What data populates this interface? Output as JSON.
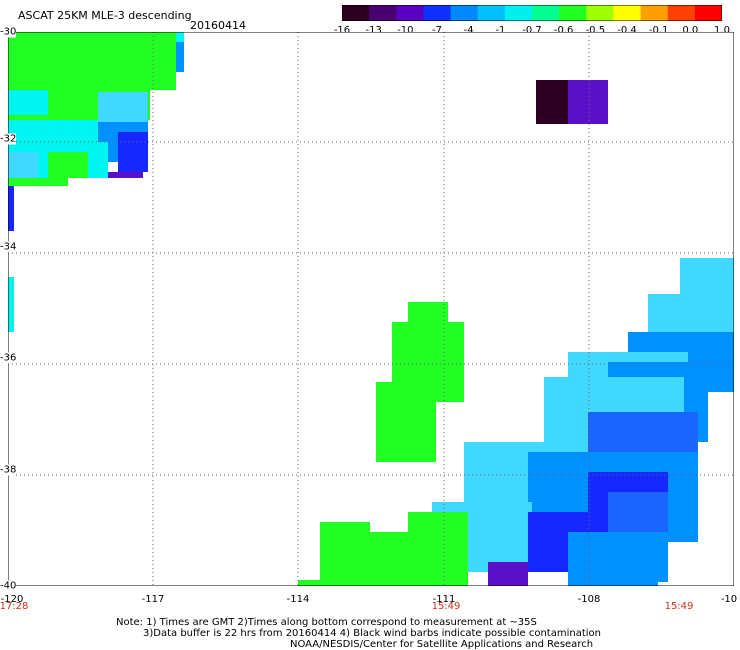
{
  "header": {
    "title": "ASCAT 25KM MLE-3 descending",
    "date": "20160414"
  },
  "colorbar": {
    "labels": [
      "-16",
      "-13",
      "-10",
      "-7",
      "-4",
      "-1",
      "-0.7",
      "-0.6",
      "-0.5",
      "-0.4",
      "-0.1",
      "0.0",
      "1.0"
    ],
    "colors": [
      "#2a001e",
      "#4a0070",
      "#5a00c0",
      "#1030ff",
      "#0088ff",
      "#00c0ff",
      "#00f0f0",
      "#00ff90",
      "#20ff20",
      "#a0ff00",
      "#ffff00",
      "#ffa000",
      "#ff4000",
      "#ff0000"
    ]
  },
  "map": {
    "lat_labels": [
      "-30",
      "-32",
      "-34",
      "-36",
      "-38",
      "-40"
    ],
    "lon_labels": [
      "-120",
      "-117",
      "-114",
      "-111",
      "-108",
      "-10"
    ],
    "time_labels": [
      "17:28",
      "15:49",
      "15:49"
    ]
  },
  "notes": {
    "line1": "Note: 1) Times are GMT 2)Times along bottom correspond to measurement at ~35S",
    "line2": "3)Data buffer is 22 hrs from 20160414 4) Black wind barbs indicate possible contamination",
    "line3": "NOAA/NESDIS/Center for Satellite Applications and Research"
  }
}
